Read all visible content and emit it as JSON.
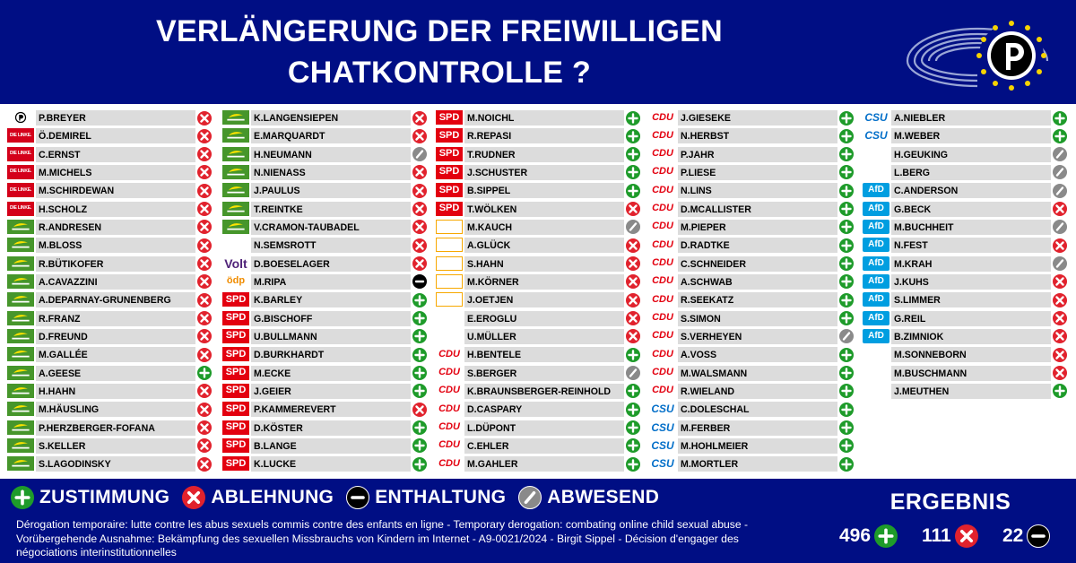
{
  "header": {
    "title_line1": "VERLÄNGERUNG DER FREIWILLIGEN",
    "title_line2": "CHATKONTROLLE ?"
  },
  "colors": {
    "header_bg": "#000e84",
    "yes": "#1e9b2a",
    "no": "#e1222d",
    "abstain": "#000000",
    "absent": "#8a8a8a"
  },
  "columns": [
    [
      {
        "party": "pirates",
        "name": "P.BREYER",
        "vote": "no"
      },
      {
        "party": "linke",
        "party_label": "DIE LINKE.",
        "name": "Ö.DEMIREL",
        "vote": "no"
      },
      {
        "party": "linke",
        "party_label": "DIE LINKE.",
        "name": "C.ERNST",
        "vote": "no"
      },
      {
        "party": "linke",
        "party_label": "DIE LINKE.",
        "name": "M.MICHELS",
        "vote": "no"
      },
      {
        "party": "linke",
        "party_label": "DIE LINKE.",
        "name": "M.SCHIRDEWAN",
        "vote": "no"
      },
      {
        "party": "linke",
        "party_label": "DIE LINKE.",
        "name": "H.SCHOLZ",
        "vote": "no"
      },
      {
        "party": "gruene",
        "name": "R.ANDRESEN",
        "vote": "no"
      },
      {
        "party": "gruene",
        "name": "M.BLOSS",
        "vote": "no"
      },
      {
        "party": "gruene",
        "name": "R.BÜTIKOFER",
        "vote": "no"
      },
      {
        "party": "gruene",
        "name": "A.CAVAZZINI",
        "vote": "no"
      },
      {
        "party": "gruene",
        "name": "A.DEPARNAY-GRUNENBERG",
        "vote": "no"
      },
      {
        "party": "gruene",
        "name": "R.FRANZ",
        "vote": "no"
      },
      {
        "party": "gruene",
        "name": "D.FREUND",
        "vote": "no"
      },
      {
        "party": "gruene",
        "name": "M.GALLÉE",
        "vote": "no"
      },
      {
        "party": "gruene",
        "name": "A.GEESE",
        "vote": "yes"
      },
      {
        "party": "gruene",
        "name": "H.HAHN",
        "vote": "no"
      },
      {
        "party": "gruene",
        "name": "M.HÄUSLING",
        "vote": "no"
      },
      {
        "party": "gruene",
        "name": "P.HERZBERGER-FOFANA",
        "vote": "no"
      },
      {
        "party": "gruene",
        "name": "S.KELLER",
        "vote": "no"
      },
      {
        "party": "gruene",
        "name": "S.LAGODINSKY",
        "vote": "no"
      }
    ],
    [
      {
        "party": "gruene",
        "name": "K.LANGENSIEPEN",
        "vote": "no"
      },
      {
        "party": "gruene",
        "name": "E.MARQUARDT",
        "vote": "no"
      },
      {
        "party": "gruene",
        "name": "H.NEUMANN",
        "vote": "absent"
      },
      {
        "party": "gruene",
        "name": "N.NIENASS",
        "vote": "no"
      },
      {
        "party": "gruene",
        "name": "J.PAULUS",
        "vote": "no"
      },
      {
        "party": "gruene",
        "name": "T.REINTKE",
        "vote": "no"
      },
      {
        "party": "gruene",
        "name": "V.CRAMON-TAUBADEL",
        "vote": "no"
      },
      {
        "party": "none",
        "name": "N.SEMSROTT",
        "vote": "no"
      },
      {
        "party": "volt",
        "party_label": "Volt",
        "name": "D.BOESELAGER",
        "vote": "no"
      },
      {
        "party": "oedp",
        "party_label": "ödp",
        "name": "M.RIPA",
        "vote": "abstain"
      },
      {
        "party": "spd",
        "party_label": "SPD",
        "name": "K.BARLEY",
        "vote": "yes"
      },
      {
        "party": "spd",
        "party_label": "SPD",
        "name": "G.BISCHOFF",
        "vote": "yes"
      },
      {
        "party": "spd",
        "party_label": "SPD",
        "name": "U.BULLMANN",
        "vote": "yes"
      },
      {
        "party": "spd",
        "party_label": "SPD",
        "name": "D.BURKHARDT",
        "vote": "yes"
      },
      {
        "party": "spd",
        "party_label": "SPD",
        "name": "M.ECKE",
        "vote": "yes"
      },
      {
        "party": "spd",
        "party_label": "SPD",
        "name": "J.GEIER",
        "vote": "yes"
      },
      {
        "party": "spd",
        "party_label": "SPD",
        "name": "P.KAMMEREVERT",
        "vote": "no"
      },
      {
        "party": "spd",
        "party_label": "SPD",
        "name": "D.KÖSTER",
        "vote": "yes"
      },
      {
        "party": "spd",
        "party_label": "SPD",
        "name": "B.LANGE",
        "vote": "yes"
      },
      {
        "party": "spd",
        "party_label": "SPD",
        "name": "K.LUCKE",
        "vote": "yes"
      }
    ],
    [
      {
        "party": "spd",
        "party_label": "SPD",
        "name": "M.NOICHL",
        "vote": "yes"
      },
      {
        "party": "spd",
        "party_label": "SPD",
        "name": "R.REPASI",
        "vote": "yes"
      },
      {
        "party": "spd",
        "party_label": "SPD",
        "name": "T.RUDNER",
        "vote": "yes"
      },
      {
        "party": "spd",
        "party_label": "SPD",
        "name": "J.SCHUSTER",
        "vote": "yes"
      },
      {
        "party": "spd",
        "party_label": "SPD",
        "name": "B.SIPPEL",
        "vote": "yes"
      },
      {
        "party": "spd",
        "party_label": "SPD",
        "name": "T.WÖLKEN",
        "vote": "no"
      },
      {
        "party": "fdp",
        "name": "M.KAUCH",
        "vote": "absent"
      },
      {
        "party": "fdp",
        "name": "A.GLÜCK",
        "vote": "no"
      },
      {
        "party": "fdp",
        "name": "S.HAHN",
        "vote": "no"
      },
      {
        "party": "fdp",
        "name": "M.KÖRNER",
        "vote": "no"
      },
      {
        "party": "fdp",
        "name": "J.OETJEN",
        "vote": "no"
      },
      {
        "party": "fw",
        "name": "E.EROGLU",
        "vote": "no"
      },
      {
        "party": "fw",
        "name": "U.MÜLLER",
        "vote": "no"
      },
      {
        "party": "cdu",
        "party_label": "CDU",
        "name": "H.BENTELE",
        "vote": "yes"
      },
      {
        "party": "cdu",
        "party_label": "CDU",
        "name": "S.BERGER",
        "vote": "absent"
      },
      {
        "party": "cdu",
        "party_label": "CDU",
        "name": "K.BRAUNSBERGER-REINHOLD",
        "vote": "yes"
      },
      {
        "party": "cdu",
        "party_label": "CDU",
        "name": "D.CASPARY",
        "vote": "yes"
      },
      {
        "party": "cdu",
        "party_label": "CDU",
        "name": "L.DÜPONT",
        "vote": "yes"
      },
      {
        "party": "cdu",
        "party_label": "CDU",
        "name": "C.EHLER",
        "vote": "yes"
      },
      {
        "party": "cdu",
        "party_label": "CDU",
        "name": "M.GAHLER",
        "vote": "yes"
      }
    ],
    [
      {
        "party": "cdu",
        "party_label": "CDU",
        "name": "J.GIESEKE",
        "vote": "yes"
      },
      {
        "party": "cdu",
        "party_label": "CDU",
        "name": "N.HERBST",
        "vote": "yes"
      },
      {
        "party": "cdu",
        "party_label": "CDU",
        "name": "P.JAHR",
        "vote": "yes"
      },
      {
        "party": "cdu",
        "party_label": "CDU",
        "name": "P.LIESE",
        "vote": "yes"
      },
      {
        "party": "cdu",
        "party_label": "CDU",
        "name": "N.LINS",
        "vote": "yes"
      },
      {
        "party": "cdu",
        "party_label": "CDU",
        "name": "D.MCALLISTER",
        "vote": "yes"
      },
      {
        "party": "cdu",
        "party_label": "CDU",
        "name": "M.PIEPER",
        "vote": "yes"
      },
      {
        "party": "cdu",
        "party_label": "CDU",
        "name": "D.RADTKE",
        "vote": "yes"
      },
      {
        "party": "cdu",
        "party_label": "CDU",
        "name": "C.SCHNEIDER",
        "vote": "yes"
      },
      {
        "party": "cdu",
        "party_label": "CDU",
        "name": "A.SCHWAB",
        "vote": "yes"
      },
      {
        "party": "cdu",
        "party_label": "CDU",
        "name": "R.SEEKATZ",
        "vote": "yes"
      },
      {
        "party": "cdu",
        "party_label": "CDU",
        "name": "S.SIMON",
        "vote": "yes"
      },
      {
        "party": "cdu",
        "party_label": "CDU",
        "name": "S.VERHEYEN",
        "vote": "absent"
      },
      {
        "party": "cdu",
        "party_label": "CDU",
        "name": "A.VOSS",
        "vote": "yes"
      },
      {
        "party": "cdu",
        "party_label": "CDU",
        "name": "M.WALSMANN",
        "vote": "yes"
      },
      {
        "party": "cdu",
        "party_label": "CDU",
        "name": "R.WIELAND",
        "vote": "yes"
      },
      {
        "party": "csu",
        "party_label": "CSU",
        "name": "C.DOLESCHAL",
        "vote": "yes"
      },
      {
        "party": "csu",
        "party_label": "CSU",
        "name": "M.FERBER",
        "vote": "yes"
      },
      {
        "party": "csu",
        "party_label": "CSU",
        "name": "M.HOHLMEIER",
        "vote": "yes"
      },
      {
        "party": "csu",
        "party_label": "CSU",
        "name": "M.MORTLER",
        "vote": "yes"
      }
    ],
    [
      {
        "party": "csu",
        "party_label": "CSU",
        "name": "A.NIEBLER",
        "vote": "yes"
      },
      {
        "party": "csu",
        "party_label": "CSU",
        "name": "M.WEBER",
        "vote": "yes"
      },
      {
        "party": "familie",
        "name": "H.GEUKING",
        "vote": "absent"
      },
      {
        "party": "bd",
        "name": "L.BERG",
        "vote": "absent"
      },
      {
        "party": "afd",
        "party_label": "AfD",
        "name": "C.ANDERSON",
        "vote": "absent"
      },
      {
        "party": "afd",
        "party_label": "AfD",
        "name": "G.BECK",
        "vote": "no"
      },
      {
        "party": "afd",
        "party_label": "AfD",
        "name": "M.BUCHHEIT",
        "vote": "absent"
      },
      {
        "party": "afd",
        "party_label": "AfD",
        "name": "N.FEST",
        "vote": "no"
      },
      {
        "party": "afd",
        "party_label": "AfD",
        "name": "M.KRAH",
        "vote": "absent"
      },
      {
        "party": "afd",
        "party_label": "AfD",
        "name": "J.KUHS",
        "vote": "no"
      },
      {
        "party": "afd",
        "party_label": "AfD",
        "name": "S.LIMMER",
        "vote": "no"
      },
      {
        "party": "afd",
        "party_label": "AfD",
        "name": "G.REIL",
        "vote": "no"
      },
      {
        "party": "afd",
        "party_label": "AfD",
        "name": "B.ZIMNIOK",
        "vote": "no"
      },
      {
        "party": "partei",
        "name": "M.SONNEBORN",
        "vote": "no"
      },
      {
        "party": "none",
        "name": "M.BUSCHMANN",
        "vote": "no"
      },
      {
        "party": "none",
        "name": "J.MEUTHEN",
        "vote": "yes"
      }
    ]
  ],
  "legend": [
    {
      "key": "yes",
      "label": "ZUSTIMMUNG"
    },
    {
      "key": "no",
      "label": "ABLEHNUNG"
    },
    {
      "key": "abstain",
      "label": "ENTHALTUNG"
    },
    {
      "key": "absent",
      "label": "ABWESEND"
    }
  ],
  "description": "Dérogation temporaire: lutte contre les abus sexuels commis contre des enfants en ligne - Temporary derogation: combating online child sexual abuse - Vorübergehende Ausnahme: Bekämpfung des sexuellen Missbrauchs von Kindern im Internet - A9-0021/2024 - Birgit Sippel - Décision d'engager des négociations interinstitutionnelles",
  "result": {
    "title": "ERGEBNIS",
    "yes_count": "496",
    "no_count": "111",
    "abstain_count": "22"
  }
}
